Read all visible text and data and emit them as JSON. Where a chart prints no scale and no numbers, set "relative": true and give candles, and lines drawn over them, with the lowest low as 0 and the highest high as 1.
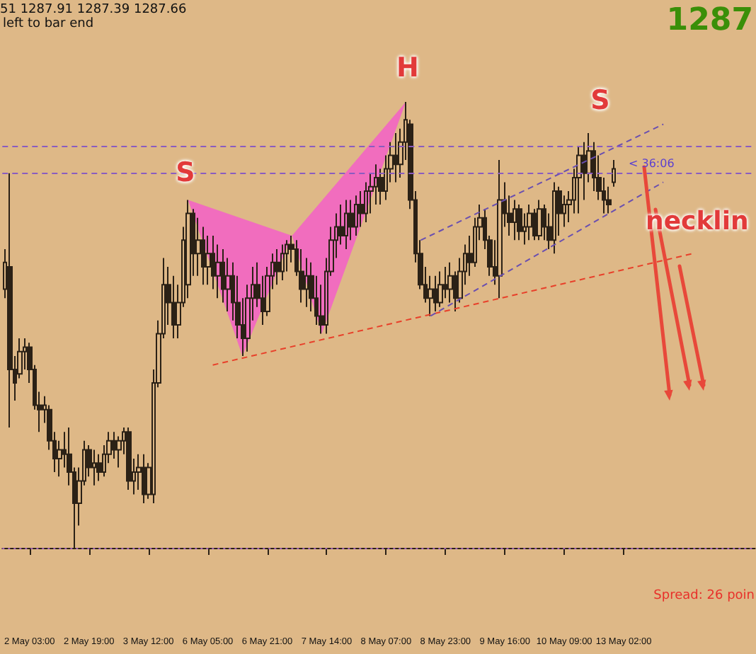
{
  "chart_data": {
    "type": "candlestick",
    "relative": true,
    "grid": false,
    "categories": [
      null,
      null,
      null,
      null,
      null,
      "2 May 03:00",
      null,
      null,
      null,
      null,
      null,
      null,
      null,
      null,
      null,
      null,
      null,
      "2 May 19:00",
      null,
      null,
      null,
      null,
      null,
      null,
      null,
      null,
      null,
      null,
      null,
      "3 May 12:00",
      null,
      null,
      null,
      null,
      null,
      null,
      null,
      null,
      null,
      null,
      null,
      "6 May 05:00",
      null,
      null,
      null,
      null,
      null,
      null,
      null,
      null,
      null,
      null,
      null,
      "6 May 21:00",
      null,
      null,
      null,
      null,
      null,
      null,
      null,
      null,
      null,
      null,
      null,
      "7 May 14:00",
      null,
      null,
      null,
      null,
      null,
      null,
      null,
      null,
      null,
      null,
      null,
      "8 May 07:00",
      null,
      null,
      null,
      null,
      null,
      null,
      null,
      null,
      null,
      null,
      null,
      "8 May 23:00",
      null,
      null,
      null,
      null,
      null,
      null,
      null,
      null,
      null,
      null,
      null,
      "9 May 16:00",
      null,
      null,
      null,
      null,
      null,
      null,
      null,
      null,
      null,
      null,
      null,
      "10 May 09:00",
      null,
      null,
      null,
      null,
      null,
      null,
      null,
      null,
      null,
      null,
      null,
      "13 May 02:00",
      null,
      null,
      null,
      null,
      null,
      null,
      null,
      null,
      null,
      null,
      null,
      null,
      null,
      null,
      null,
      null,
      null,
      null,
      null,
      null,
      null,
      null,
      null,
      null,
      null,
      null
    ],
    "series": [
      {
        "color": "#2b2116",
        "ohlc": [
          [
            0.58,
            0.67,
            0.56,
            0.64
          ],
          [
            0.63,
            0.84,
            0.27,
            0.4
          ],
          [
            0.4,
            0.43,
            0.33,
            0.37
          ],
          [
            0.39,
            0.47,
            0.38,
            0.44
          ],
          [
            0.44,
            0.47,
            0.4,
            0.45
          ],
          [
            0.45,
            0.46,
            0.37,
            0.4
          ],
          [
            0.4,
            0.41,
            0.31,
            0.32
          ],
          [
            0.32,
            0.35,
            0.26,
            0.31
          ],
          [
            0.31,
            0.34,
            0.28,
            0.32
          ],
          [
            0.31,
            0.32,
            0.22,
            0.24
          ],
          [
            0.24,
            0.26,
            0.17,
            0.2
          ],
          [
            0.2,
            0.24,
            0.16,
            0.22
          ],
          [
            0.22,
            0.26,
            0.18,
            0.21
          ],
          [
            0.21,
            0.27,
            0.14,
            0.17
          ],
          [
            0.17,
            0.18,
            0,
            0.1
          ],
          [
            0.1,
            0.18,
            0.05,
            0.15
          ],
          [
            0.15,
            0.24,
            0.14,
            0.22
          ],
          [
            0.22,
            0.23,
            0.16,
            0.18
          ],
          [
            0.18,
            0.22,
            0.14,
            0.19
          ],
          [
            0.19,
            0.21,
            0.15,
            0.17
          ],
          [
            0.17,
            0.23,
            0.16,
            0.21
          ],
          [
            0.21,
            0.26,
            0.19,
            0.24
          ],
          [
            0.24,
            0.26,
            0.2,
            0.22
          ],
          [
            0.22,
            0.25,
            0.18,
            0.24
          ],
          [
            0.24,
            0.27,
            0.21,
            0.26
          ],
          [
            0.26,
            0.27,
            0.13,
            0.15
          ],
          [
            0.15,
            0.2,
            0.12,
            0.17
          ],
          [
            0.17,
            0.21,
            0.13,
            0.18
          ],
          [
            0.18,
            0.21,
            0.1,
            0.12
          ],
          [
            0.12,
            0.19,
            0.11,
            0.18
          ],
          [
            0.12,
            0.4,
            0.1,
            0.37
          ],
          [
            0.37,
            0.51,
            0.36,
            0.48
          ],
          [
            0.48,
            0.65,
            0.47,
            0.59
          ],
          [
            0.59,
            0.63,
            0.5,
            0.55
          ],
          [
            0.55,
            0.61,
            0.47,
            0.5
          ],
          [
            0.5,
            0.59,
            0.47,
            0.55
          ],
          [
            0.55,
            0.72,
            0.54,
            0.69
          ],
          [
            0.59,
            0.78,
            0.56,
            0.75
          ],
          [
            0.75,
            0.76,
            0.61,
            0.66
          ],
          [
            0.66,
            0.74,
            0.61,
            0.69
          ],
          [
            0.69,
            0.72,
            0.59,
            0.63
          ],
          [
            0.63,
            0.7,
            0.59,
            0.66
          ],
          [
            0.66,
            0.7,
            0.58,
            0.61
          ],
          [
            0.61,
            0.68,
            0.56,
            0.64
          ],
          [
            0.64,
            0.67,
            0.55,
            0.58
          ],
          [
            0.58,
            0.65,
            0.53,
            0.61
          ],
          [
            0.61,
            0.64,
            0.51,
            0.55
          ],
          [
            0.55,
            0.61,
            0.47,
            0.5
          ],
          [
            0.5,
            0.56,
            0.43,
            0.47
          ],
          [
            0.47,
            0.59,
            0.44,
            0.56
          ],
          [
            0.56,
            0.63,
            0.51,
            0.59
          ],
          [
            0.59,
            0.64,
            0.54,
            0.56
          ],
          [
            0.56,
            0.61,
            0.5,
            0.53
          ],
          [
            0.53,
            0.63,
            0.52,
            0.61
          ],
          [
            0.61,
            0.66,
            0.58,
            0.64
          ],
          [
            0.64,
            0.67,
            0.59,
            0.62
          ],
          [
            0.62,
            0.68,
            0.6,
            0.66
          ],
          [
            0.66,
            0.69,
            0.62,
            0.68
          ],
          [
            0.68,
            0.7,
            0.64,
            0.67
          ],
          [
            0.67,
            0.69,
            0.61,
            0.62
          ],
          [
            0.62,
            0.67,
            0.55,
            0.58
          ],
          [
            0.58,
            0.65,
            0.54,
            0.61
          ],
          [
            0.61,
            0.64,
            0.53,
            0.56
          ],
          [
            0.56,
            0.61,
            0.5,
            0.52
          ],
          [
            0.52,
            0.59,
            0.48,
            0.5
          ],
          [
            0.5,
            0.65,
            0.48,
            0.62
          ],
          [
            0.62,
            0.72,
            0.61,
            0.69
          ],
          [
            0.69,
            0.75,
            0.65,
            0.72
          ],
          [
            0.72,
            0.77,
            0.68,
            0.7
          ],
          [
            0.7,
            0.78,
            0.67,
            0.75
          ],
          [
            0.75,
            0.78,
            0.69,
            0.72
          ],
          [
            0.72,
            0.79,
            0.7,
            0.77
          ],
          [
            0.77,
            0.8,
            0.72,
            0.75
          ],
          [
            0.75,
            0.82,
            0.73,
            0.8
          ],
          [
            0.8,
            0.84,
            0.75,
            0.81
          ],
          [
            0.81,
            0.86,
            0.77,
            0.83
          ],
          [
            0.83,
            0.85,
            0.77,
            0.8
          ],
          [
            0.8,
            0.88,
            0.78,
            0.85
          ],
          [
            0.85,
            0.91,
            0.82,
            0.88
          ],
          [
            0.88,
            0.93,
            0.82,
            0.86
          ],
          [
            0.86,
            0.94,
            0.83,
            0.91
          ],
          [
            0.91,
            1.0,
            0.87,
            0.96
          ],
          [
            0.95,
            0.96,
            0.76,
            0.78
          ],
          [
            0.78,
            0.8,
            0.64,
            0.66
          ],
          [
            0.66,
            0.69,
            0.58,
            0.59
          ],
          [
            0.59,
            0.63,
            0.55,
            0.56
          ],
          [
            0.56,
            0.61,
            0.52,
            0.58
          ],
          [
            0.58,
            0.61,
            0.53,
            0.55
          ],
          [
            0.55,
            0.62,
            0.54,
            0.59
          ],
          [
            0.59,
            0.63,
            0.56,
            0.58
          ],
          [
            0.58,
            0.64,
            0.55,
            0.61
          ],
          [
            0.61,
            0.62,
            0.53,
            0.56
          ],
          [
            0.56,
            0.65,
            0.55,
            0.62
          ],
          [
            0.62,
            0.68,
            0.59,
            0.66
          ],
          [
            0.66,
            0.7,
            0.61,
            0.64
          ],
          [
            0.64,
            0.74,
            0.63,
            0.72
          ],
          [
            0.72,
            0.77,
            0.69,
            0.74
          ],
          [
            0.74,
            0.76,
            0.67,
            0.69
          ],
          [
            0.69,
            0.7,
            0.61,
            0.63
          ],
          [
            0.63,
            0.69,
            0.59,
            0.61
          ],
          [
            0.61,
            0.87,
            0.56,
            0.78
          ],
          [
            0.78,
            0.82,
            0.72,
            0.75
          ],
          [
            0.75,
            0.79,
            0.7,
            0.73
          ],
          [
            0.73,
            0.78,
            0.69,
            0.76
          ],
          [
            0.76,
            0.77,
            0.69,
            0.71
          ],
          [
            0.71,
            0.75,
            0.68,
            0.72
          ],
          [
            0.72,
            0.77,
            0.69,
            0.75
          ],
          [
            0.75,
            0.76,
            0.69,
            0.7
          ],
          [
            0.7,
            0.78,
            0.69,
            0.76
          ],
          [
            0.76,
            0.77,
            0.69,
            0.72
          ],
          [
            0.72,
            0.75,
            0.67,
            0.69
          ],
          [
            0.69,
            0.82,
            0.66,
            0.8
          ],
          [
            0.8,
            0.81,
            0.7,
            0.75
          ],
          [
            0.75,
            0.79,
            0.72,
            0.77
          ],
          [
            0.77,
            0.8,
            0.73,
            0.78
          ],
          [
            0.78,
            0.85,
            0.75,
            0.83
          ],
          [
            0.83,
            0.9,
            0.75,
            0.88
          ],
          [
            0.88,
            0.91,
            0.78,
            0.84
          ],
          [
            0.84,
            0.93,
            0.82,
            0.89
          ],
          [
            0.89,
            0.91,
            0.8,
            0.83
          ],
          [
            0.83,
            0.88,
            0.78,
            0.8
          ],
          [
            0.8,
            0.83,
            0.75,
            0.78
          ],
          [
            0.78,
            0.81,
            0.75,
            0.77
          ],
          [
            0.82,
            0.87,
            0.81,
            0.85
          ],
          null,
          null,
          null,
          null,
          null,
          null,
          null,
          null,
          null,
          null,
          null,
          null,
          null,
          null,
          null,
          null,
          null,
          null,
          null,
          null,
          null,
          null,
          null,
          null,
          null,
          null,
          null,
          null
        ]
      },
      {
        "type": "line",
        "color": "#e8402a",
        "line_style": "dashed",
        "values": [
          null,
          null,
          null,
          null,
          null,
          null,
          null,
          null,
          null,
          null,
          null,
          null,
          null,
          null,
          null,
          null,
          null,
          null,
          null,
          null,
          null,
          null,
          null,
          null,
          null,
          null,
          null,
          null,
          null,
          null,
          null,
          null,
          null,
          null,
          null,
          null,
          null,
          null,
          null,
          null,
          null,
          null,
          0.41,
          null,
          null,
          null,
          null,
          null,
          null,
          null,
          null,
          null,
          null,
          null,
          null,
          null,
          null,
          null,
          null,
          null,
          null,
          null,
          null,
          null,
          null,
          null,
          null,
          null,
          null,
          null,
          null,
          null,
          null,
          null,
          null,
          null,
          null,
          null,
          null,
          null,
          null,
          null,
          null,
          null,
          null,
          null,
          null,
          null,
          null,
          null,
          null,
          null,
          null,
          null,
          null,
          null,
          null,
          null,
          null,
          null,
          null,
          null,
          null,
          null,
          null,
          null,
          null,
          null,
          null,
          null,
          null,
          null,
          null,
          null,
          null,
          null,
          null,
          null,
          null,
          null,
          null,
          null,
          null,
          null,
          null,
          null,
          null,
          null,
          null,
          null,
          null,
          null,
          null,
          null,
          null,
          null,
          null,
          null,
          null,
          0.66,
          null,
          null,
          null,
          null,
          null,
          null,
          null,
          null,
          null,
          null,
          null,
          null
        ]
      },
      {
        "type": "line",
        "color": "#6a4fb0",
        "line_style": "dashed",
        "values": [
          null,
          null,
          null,
          null,
          null,
          null,
          null,
          null,
          null,
          null,
          null,
          null,
          null,
          null,
          null,
          null,
          null,
          null,
          null,
          null,
          null,
          null,
          null,
          null,
          null,
          null,
          null,
          null,
          null,
          null,
          null,
          null,
          null,
          null,
          null,
          null,
          null,
          null,
          null,
          null,
          null,
          null,
          null,
          null,
          null,
          null,
          null,
          null,
          null,
          null,
          null,
          null,
          null,
          null,
          null,
          null,
          null,
          null,
          null,
          null,
          null,
          null,
          null,
          null,
          null,
          null,
          null,
          null,
          null,
          null,
          null,
          null,
          null,
          null,
          null,
          null,
          null,
          null,
          null,
          null,
          null,
          null,
          null,
          null,
          0.69,
          null,
          null,
          null,
          null,
          null,
          null,
          null,
          null,
          null,
          null,
          null,
          null,
          null,
          null,
          null,
          null,
          null,
          null,
          null,
          null,
          null,
          null,
          null,
          null,
          null,
          null,
          null,
          null,
          null,
          null,
          null,
          null,
          null,
          null,
          null,
          null,
          null,
          null,
          null,
          null,
          null,
          null,
          null,
          null,
          null,
          null,
          null,
          null,
          0.95,
          null,
          null,
          null,
          null,
          null,
          null,
          null,
          null,
          null,
          null,
          null,
          null,
          null,
          null,
          null,
          null,
          null,
          null
        ]
      },
      {
        "type": "line",
        "color": "#6a4fb0",
        "line_style": "dashed",
        "values": [
          null,
          null,
          null,
          null,
          null,
          null,
          null,
          null,
          null,
          null,
          null,
          null,
          null,
          null,
          null,
          null,
          null,
          null,
          null,
          null,
          null,
          null,
          null,
          null,
          null,
          null,
          null,
          null,
          null,
          null,
          null,
          null,
          null,
          null,
          null,
          null,
          null,
          null,
          null,
          null,
          null,
          null,
          null,
          null,
          null,
          null,
          null,
          null,
          null,
          null,
          null,
          null,
          null,
          null,
          null,
          null,
          null,
          null,
          null,
          null,
          null,
          null,
          null,
          null,
          null,
          null,
          null,
          null,
          null,
          null,
          null,
          null,
          null,
          null,
          null,
          null,
          null,
          null,
          null,
          null,
          null,
          null,
          null,
          null,
          null,
          null,
          0.52,
          null,
          null,
          null,
          null,
          null,
          null,
          null,
          null,
          null,
          null,
          null,
          null,
          null,
          null,
          null,
          null,
          null,
          null,
          null,
          null,
          null,
          null,
          null,
          null,
          null,
          null,
          null,
          null,
          null,
          null,
          null,
          null,
          null,
          null,
          null,
          null,
          null,
          null,
          null,
          null,
          null,
          null,
          null,
          null,
          null,
          null,
          0.82,
          null,
          null,
          null,
          null,
          null,
          null,
          null,
          null,
          null,
          null,
          null,
          null,
          null,
          null,
          null,
          null,
          null,
          null
        ]
      }
    ],
    "ref_lines": [
      {
        "axis": "y",
        "value": 0.9,
        "color": "#8a5cc0",
        "line_style": "dashed"
      },
      {
        "axis": "y",
        "value": 0.84,
        "color": "#8a5cc0",
        "line_style": "dashed"
      },
      {
        "axis": "y",
        "value": 0,
        "color": "#9a5cb0",
        "line_style": "dotted"
      }
    ],
    "annotations": [
      "51 1287.91 1287.39 1287.66",
      "left to bar end",
      "1287",
      "S",
      "H",
      "S",
      "< 36:06",
      "necklin",
      "Spread: 26 poin"
    ]
  }
}
